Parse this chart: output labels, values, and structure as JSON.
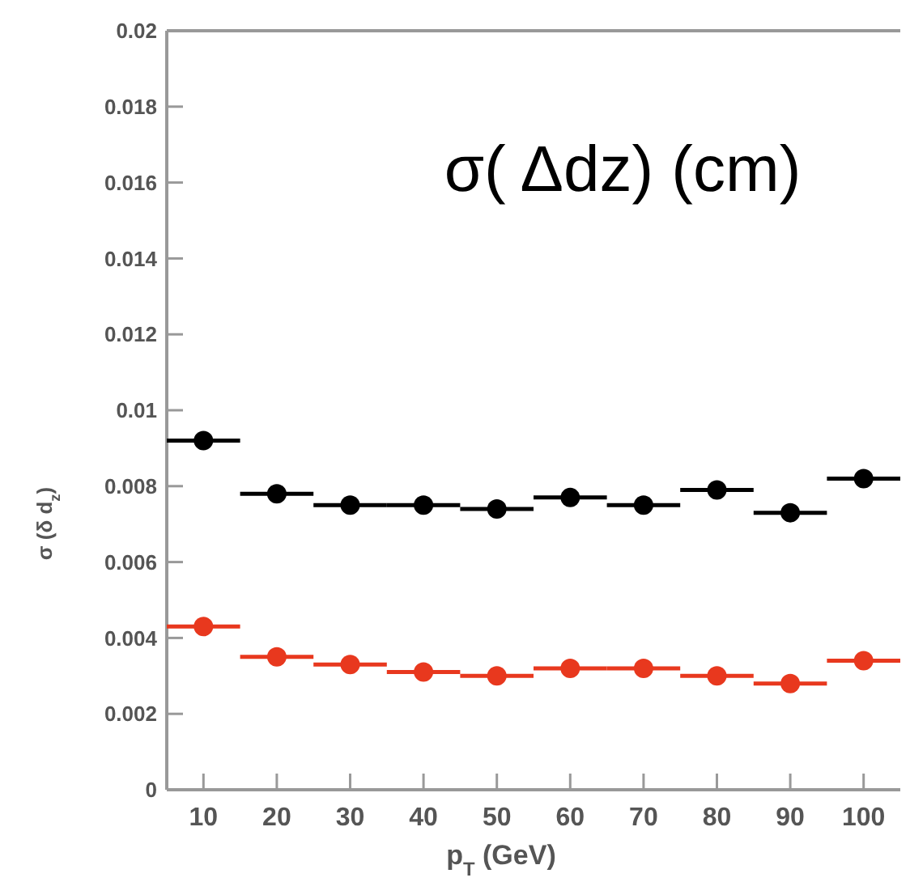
{
  "chart_data": {
    "type": "scatter",
    "xlabel": "p$_{T}$ (GeV)",
    "ylabel": "σ (δ d$_{z}$)",
    "annotations": [
      "σ( Δdz) (cm)"
    ],
    "x": [
      10,
      20,
      30,
      40,
      50,
      60,
      70,
      80,
      90,
      100
    ],
    "series": [
      {
        "color": "#000000",
        "values": [
          0.0092,
          0.0078,
          0.0075,
          0.0075,
          0.0074,
          0.0077,
          0.0075,
          0.0079,
          0.0073,
          0.0082
        ],
        "xerrors": [
          5,
          5,
          5,
          5,
          5,
          5,
          5,
          5,
          5,
          5
        ]
      },
      {
        "color": "#e8381e",
        "values": [
          0.0043,
          0.0035,
          0.0033,
          0.0031,
          0.003,
          0.0032,
          0.0032,
          0.003,
          0.0028,
          0.0034
        ],
        "xerrors": [
          5,
          5,
          5,
          5,
          5,
          5,
          5,
          5,
          5,
          5
        ]
      }
    ],
    "xlim": [
      5,
      105
    ],
    "ylim": [
      0,
      0.02
    ],
    "xticks": [
      10,
      20,
      30,
      40,
      50,
      60,
      70,
      80,
      90,
      100
    ],
    "yticks": [
      0,
      0.002,
      0.004,
      0.006,
      0.008,
      {
        "value": 0.01,
        "label": "0.01"
      },
      0.012,
      0.014,
      0.016,
      0.018,
      0.02
    ],
    "marker": "circle",
    "grid": false
  }
}
